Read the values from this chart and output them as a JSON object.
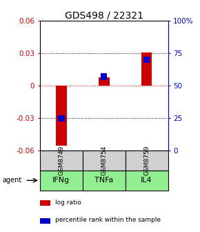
{
  "title": "GDS498 / 22321",
  "samples": [
    "GSM8749",
    "GSM8754",
    "GSM8759"
  ],
  "agents": [
    "IFNg",
    "TNFa",
    "IL4"
  ],
  "log_ratios": [
    -0.055,
    0.008,
    0.031
  ],
  "percentile_ranks": [
    25,
    57,
    70
  ],
  "left_ylim": [
    -0.06,
    0.06
  ],
  "right_ylim": [
    0,
    100
  ],
  "left_yticks": [
    -0.06,
    -0.03,
    0,
    0.03,
    0.06
  ],
  "right_yticks": [
    0,
    25,
    50,
    75,
    100
  ],
  "right_yticklabels": [
    "0",
    "25",
    "50",
    "75",
    "100%"
  ],
  "bar_color_red": "#cc0000",
  "bar_color_blue": "#0000cc",
  "cell_gray": "#d0d0d0",
  "cell_green": "#90ee90",
  "bar_width": 0.25,
  "title_fontsize": 10,
  "tick_fontsize": 7.5,
  "legend_fontsize": 6.5
}
